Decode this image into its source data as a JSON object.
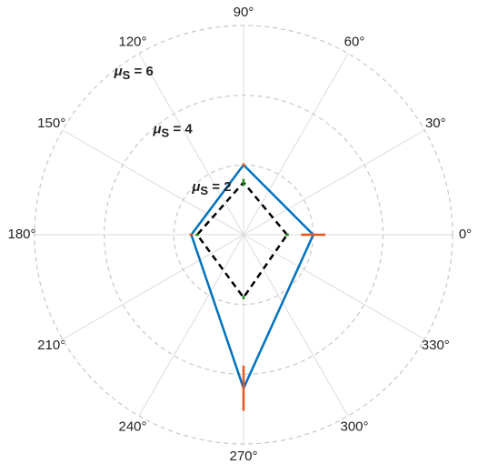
{
  "chart_data": {
    "type": "polar",
    "theta": [
      0,
      90,
      180,
      270
    ],
    "series": [
      {
        "color": "#0072bd",
        "dash": "solid",
        "values": [
          2.0,
          2.0,
          1.5,
          4.4
        ],
        "errors": [
          0.35,
          0.05,
          0.05,
          0.65
        ],
        "error_color": "#e8541a"
      },
      {
        "color": "#000000",
        "dash": "dashed",
        "values": [
          1.25,
          1.5,
          1.33,
          1.8
        ],
        "errors": [
          0.05,
          0.1,
          0.05,
          0.05
        ],
        "error_color": "#1a8a1a"
      }
    ],
    "rlim": [
      0,
      6
    ],
    "rtick_symbol": "μ",
    "rtick_subscript": "S",
    "rticks": [
      {
        "value": 2,
        "label": " = 2"
      },
      {
        "value": 4,
        "label": " = 4"
      },
      {
        "value": 6,
        "label": " = 6"
      }
    ],
    "thetaticks": [
      {
        "value": 0,
        "label": "0°"
      },
      {
        "value": 30,
        "label": "30°"
      },
      {
        "value": 60,
        "label": "60°"
      },
      {
        "value": 90,
        "label": "90°"
      },
      {
        "value": 120,
        "label": "120°"
      },
      {
        "value": 150,
        "label": "150°"
      },
      {
        "value": 180,
        "label": "180°"
      },
      {
        "value": 210,
        "label": "210°"
      },
      {
        "value": 240,
        "label": "240°"
      },
      {
        "value": 270,
        "label": "270°"
      },
      {
        "value": 300,
        "label": "300°"
      },
      {
        "value": 330,
        "label": "330°"
      }
    ],
    "grid": true
  }
}
